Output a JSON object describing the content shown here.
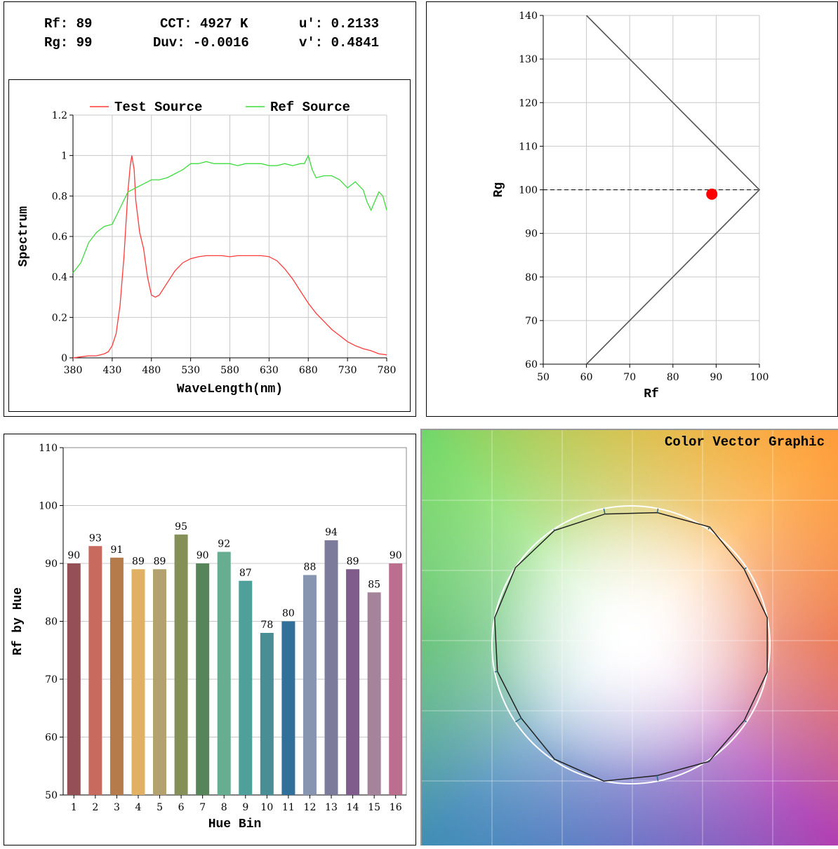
{
  "metrics": {
    "rf": "Rf: 89",
    "rg": "Rg: 99",
    "cct": "CCT: 4927 K",
    "duv": "Duv: -0.0016",
    "u_prime": "u': 0.2133",
    "v_prime": "v': 0.4841"
  },
  "chart_data": [
    {
      "type": "line",
      "xlabel": "WaveLength(nm)",
      "ylabel": "Spectrum",
      "xlim": [
        380,
        780
      ],
      "ylim": [
        0,
        1.2
      ],
      "xticks": [
        380,
        430,
        480,
        530,
        580,
        630,
        680,
        730,
        780
      ],
      "yticks": [
        0,
        0.2,
        0.4,
        0.6,
        0.8,
        1,
        1.2
      ],
      "ytick_labels": [
        "0",
        "0.2",
        "0.4",
        "0.6",
        "0.8",
        "1",
        "1.2"
      ],
      "grid": true,
      "legend": "top",
      "series": [
        {
          "name": "Test Source",
          "color": "#ff3b3b",
          "x": [
            380,
            390,
            400,
            410,
            420,
            425,
            430,
            435,
            440,
            445,
            450,
            453,
            455,
            458,
            460,
            465,
            470,
            475,
            480,
            485,
            490,
            495,
            500,
            510,
            520,
            530,
            540,
            550,
            560,
            570,
            580,
            590,
            600,
            610,
            620,
            630,
            640,
            650,
            660,
            670,
            680,
            690,
            700,
            710,
            720,
            730,
            740,
            750,
            760,
            770,
            780
          ],
          "y": [
            0.0,
            0.005,
            0.01,
            0.01,
            0.02,
            0.03,
            0.06,
            0.12,
            0.26,
            0.5,
            0.82,
            0.95,
            1.0,
            0.93,
            0.78,
            0.62,
            0.54,
            0.4,
            0.31,
            0.3,
            0.31,
            0.34,
            0.37,
            0.43,
            0.47,
            0.49,
            0.5,
            0.505,
            0.505,
            0.505,
            0.5,
            0.505,
            0.505,
            0.505,
            0.505,
            0.5,
            0.48,
            0.44,
            0.39,
            0.33,
            0.27,
            0.22,
            0.18,
            0.14,
            0.11,
            0.08,
            0.06,
            0.045,
            0.035,
            0.02,
            0.015
          ]
        },
        {
          "name": "Ref Source",
          "color": "#3ddc3d",
          "x": [
            380,
            390,
            400,
            410,
            420,
            430,
            440,
            450,
            460,
            470,
            480,
            490,
            500,
            510,
            520,
            530,
            540,
            550,
            560,
            570,
            580,
            590,
            600,
            610,
            620,
            630,
            640,
            650,
            660,
            670,
            675,
            680,
            685,
            690,
            700,
            710,
            720,
            730,
            740,
            750,
            755,
            760,
            770,
            775,
            780
          ],
          "y": [
            0.42,
            0.47,
            0.57,
            0.62,
            0.65,
            0.66,
            0.74,
            0.82,
            0.84,
            0.86,
            0.88,
            0.88,
            0.89,
            0.91,
            0.93,
            0.96,
            0.96,
            0.97,
            0.96,
            0.96,
            0.96,
            0.95,
            0.96,
            0.96,
            0.96,
            0.95,
            0.95,
            0.96,
            0.95,
            0.96,
            0.96,
            1.0,
            0.93,
            0.89,
            0.9,
            0.9,
            0.88,
            0.84,
            0.87,
            0.83,
            0.77,
            0.73,
            0.82,
            0.8,
            0.73
          ]
        }
      ]
    },
    {
      "type": "scatter",
      "xlabel": "Rf",
      "ylabel": "Rg",
      "xlim": [
        50,
        100
      ],
      "ylim": [
        60,
        140
      ],
      "xticks": [
        50,
        60,
        70,
        80,
        90,
        100
      ],
      "yticks": [
        60,
        70,
        80,
        90,
        100,
        110,
        120,
        130,
        140
      ],
      "grid": true,
      "boundary": [
        [
          60,
          140
        ],
        [
          100,
          100
        ],
        [
          60,
          60
        ]
      ],
      "reference_line_y": 100,
      "point": {
        "x": 89,
        "y": 99,
        "color": "#ff0000"
      }
    },
    {
      "type": "bar",
      "xlabel": "Hue Bin",
      "ylabel": "Rf by Hue",
      "ylim": [
        50,
        110
      ],
      "yticks": [
        50,
        60,
        70,
        80,
        90,
        100,
        110
      ],
      "grid": true,
      "categories": [
        "1",
        "2",
        "3",
        "4",
        "5",
        "6",
        "7",
        "8",
        "9",
        "10",
        "11",
        "12",
        "13",
        "14",
        "15",
        "16"
      ],
      "values": [
        90,
        93,
        91,
        89,
        89,
        95,
        90,
        92,
        87,
        78,
        80,
        88,
        94,
        89,
        85,
        90
      ],
      "colors": [
        "#944f57",
        "#c96a5e",
        "#b67b4a",
        "#e0b064",
        "#b3a26f",
        "#859058",
        "#558559",
        "#66ad91",
        "#4fa09a",
        "#4a8e95",
        "#31709a",
        "#8795b0",
        "#7d7b9c",
        "#7f5c8c",
        "#a5839a",
        "#bc6e8f"
      ]
    },
    {
      "type": "line",
      "title": "Color Vector Graphic",
      "reference_radius": 1.0,
      "test_radii": [
        1.0,
        0.98,
        1.02,
        0.97,
        0.96,
        0.99,
        1.0,
        1.0,
        0.98,
        0.95,
        0.99,
        1.0,
        0.96,
        1.01,
        0.98,
        1.0
      ]
    }
  ]
}
